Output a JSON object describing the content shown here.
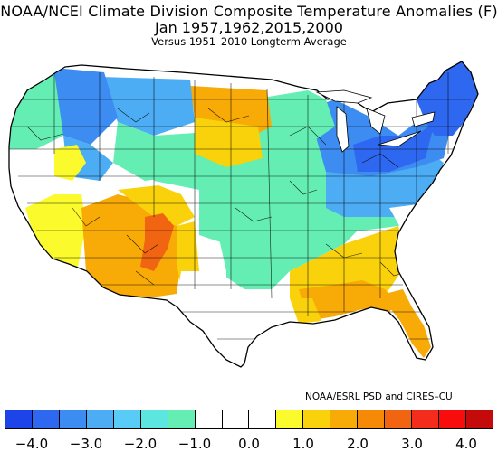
{
  "title": "NOAA/NCEI Climate Division Composite Temperature Anomalies (F)",
  "subtitle": "Jan  1957,1962,2015,2000",
  "comparison": "Versus 1951–2010 Longterm Average",
  "credit": "NOAA/ESRL PSD and CIRES–CU",
  "colorbar": {
    "colors": [
      "#1c44e8",
      "#2e68f0",
      "#3c8cf2",
      "#4cacf4",
      "#58ccf6",
      "#5ce6e0",
      "#64eeb4",
      "#ffffff",
      "#ffffff",
      "#ffffff",
      "#fafa2c",
      "#fad20c",
      "#f8aa06",
      "#f68a06",
      "#f06412",
      "#f42c1c",
      "#f80c0c",
      "#c40a0a"
    ],
    "tick_labels": [
      "−4.0",
      "−3.0",
      "−2.0",
      "−1.0",
      "0.0",
      "1.0",
      "2.0",
      "3.0",
      "4.0"
    ]
  },
  "regions": [
    {
      "name": "pacific-northwest",
      "color": "#64eeb4"
    },
    {
      "name": "northern-rockies",
      "color": "#3c8cf2"
    },
    {
      "name": "montana-plains",
      "color": "#4cacf4"
    },
    {
      "name": "north-dakota",
      "color": "#f8aa06"
    },
    {
      "name": "south-dakota",
      "color": "#fad20c"
    },
    {
      "name": "upper-midwest",
      "color": "#64eeb4"
    },
    {
      "name": "great-lakes",
      "color": "#3c8cf2"
    },
    {
      "name": "new-england",
      "color": "#2e68f0"
    },
    {
      "name": "mid-atlantic",
      "color": "#4cacf4"
    },
    {
      "name": "ohio-valley",
      "color": "#64eeb4"
    },
    {
      "name": "central-plains",
      "color": "#64eeb4"
    },
    {
      "name": "southeast",
      "color": "#fad20c"
    },
    {
      "name": "gulf-coast",
      "color": "#f8aa06"
    },
    {
      "name": "florida",
      "color": "#f8aa06"
    },
    {
      "name": "southwest",
      "color": "#f8aa06"
    },
    {
      "name": "four-corners-hotspot",
      "color": "#f06412"
    },
    {
      "name": "california-desert",
      "color": "#fafa2c"
    },
    {
      "name": "texas",
      "color": "#ffffff"
    },
    {
      "name": "great-basin",
      "color": "#ffffff"
    }
  ]
}
